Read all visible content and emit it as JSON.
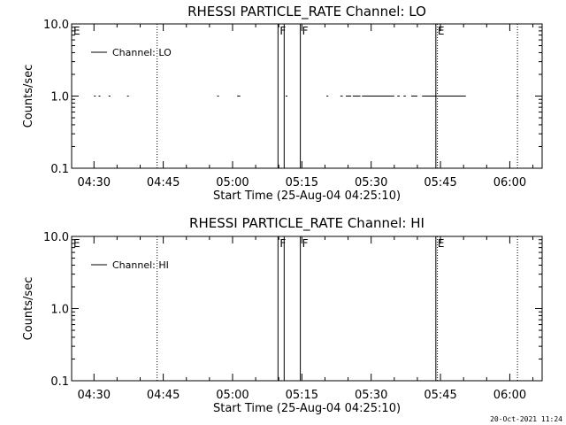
{
  "footer_timestamp": "20-Oct-2021 11:24",
  "chart_data": [
    {
      "type": "line",
      "title": "RHESSI PARTICLE_RATE Channel: LO",
      "xlabel": "Start Time (25-Aug-04 04:25:10)",
      "ylabel": "Counts/sec",
      "y_scale": "log",
      "ylim": [
        0.1,
        10.0
      ],
      "y_ticks": [
        "0.1",
        "1.0",
        "10.0"
      ],
      "xlim": [
        "04:25:10",
        "06:07:00"
      ],
      "x_ticks": [
        "04:30",
        "04:45",
        "05:00",
        "05:15",
        "05:30",
        "05:45",
        "06:00"
      ],
      "legend": {
        "label": "Channel: LO",
        "position": "top-left"
      },
      "grid": false,
      "series": [
        {
          "name": "Channel: LO",
          "value": 1.0,
          "segments": [
            [
              "04:30:00",
              "04:30:20"
            ],
            [
              "04:31:00",
              "04:31:20"
            ],
            [
              "04:33:10",
              "04:33:30"
            ],
            [
              "04:37:10",
              "04:37:30"
            ],
            [
              "04:56:40",
              "04:57:00"
            ],
            [
              "05:01:00",
              "05:01:40"
            ],
            [
              "05:11:30",
              "05:11:50"
            ],
            [
              "05:20:20",
              "05:20:40"
            ],
            [
              "05:23:20",
              "05:23:50"
            ],
            [
              "05:24:30",
              "05:25:40"
            ],
            [
              "05:26:00",
              "05:27:40"
            ],
            [
              "05:28:00",
              "05:35:00"
            ],
            [
              "05:35:40",
              "05:36:10"
            ],
            [
              "05:37:00",
              "05:37:30"
            ],
            [
              "05:38:40",
              "05:40:00"
            ],
            [
              "05:41:00",
              "05:50:30"
            ],
            [
              "06:01:30",
              "06:01:50"
            ]
          ]
        }
      ],
      "markers": [
        {
          "label": "E",
          "time": "04:25:10",
          "style": "solid"
        },
        {
          "label": "",
          "time": "04:43:40",
          "style": "dotted"
        },
        {
          "label": "F",
          "time": "05:09:50",
          "style": "solid"
        },
        {
          "label": "",
          "time": "05:11:10",
          "style": "solid"
        },
        {
          "label": "F",
          "time": "05:14:40",
          "style": "solid"
        },
        {
          "label": "E",
          "time": "05:44:00",
          "style": "solid"
        },
        {
          "label": "",
          "time": "05:44:20",
          "style": "dotted"
        },
        {
          "label": "",
          "time": "06:01:40",
          "style": "dotted"
        }
      ]
    },
    {
      "type": "line",
      "title": "RHESSI PARTICLE_RATE Channel: HI",
      "xlabel": "Start Time (25-Aug-04 04:25:10)",
      "ylabel": "Counts/sec",
      "y_scale": "log",
      "ylim": [
        0.1,
        10.0
      ],
      "y_ticks": [
        "0.1",
        "1.0",
        "10.0"
      ],
      "xlim": [
        "04:25:10",
        "06:07:00"
      ],
      "x_ticks": [
        "04:30",
        "04:45",
        "05:00",
        "05:15",
        "05:30",
        "05:45",
        "06:00"
      ],
      "legend": {
        "label": "Channel: HI",
        "position": "top-left"
      },
      "grid": false,
      "series": [
        {
          "name": "Channel: HI",
          "value": 1.0,
          "segments": []
        }
      ],
      "markers": [
        {
          "label": "E",
          "time": "04:25:10",
          "style": "solid"
        },
        {
          "label": "",
          "time": "04:43:40",
          "style": "dotted"
        },
        {
          "label": "F",
          "time": "05:09:50",
          "style": "solid"
        },
        {
          "label": "",
          "time": "05:11:10",
          "style": "solid"
        },
        {
          "label": "F",
          "time": "05:14:40",
          "style": "solid"
        },
        {
          "label": "E",
          "time": "05:44:00",
          "style": "solid"
        },
        {
          "label": "",
          "time": "05:44:20",
          "style": "dotted"
        },
        {
          "label": "",
          "time": "06:01:40",
          "style": "dotted"
        }
      ]
    }
  ]
}
